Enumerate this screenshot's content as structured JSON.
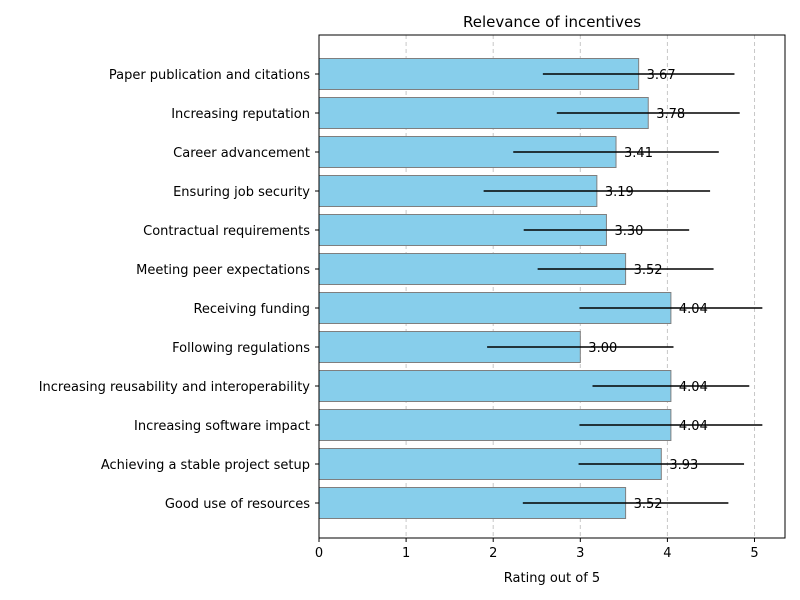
{
  "chart_data": {
    "type": "bar",
    "orientation": "horizontal",
    "title": "Relevance of incentives",
    "xlabel": "Rating out of 5",
    "ylabel": "",
    "xlim": [
      0,
      5.35
    ],
    "xticks": [
      0,
      1,
      2,
      3,
      4,
      5
    ],
    "grid": {
      "x": true,
      "y": false,
      "style": "dashed"
    },
    "colors": {
      "bar": "#87CEEB",
      "bar_edge": "#7f7f7f",
      "error_bar": "#000000",
      "grid": "#c8c8c8"
    },
    "categories": [
      "Paper publication and citations",
      "Increasing reputation",
      "Career advancement",
      "Ensuring job security",
      "Contractual requirements",
      "Meeting peer expectations",
      "Receiving funding",
      "Following regulations",
      "Increasing reusability and interoperability",
      "Increasing software impact",
      "Achieving a stable project setup",
      "Good use of resources"
    ],
    "values": [
      3.67,
      3.78,
      3.41,
      3.19,
      3.3,
      3.52,
      4.04,
      3.0,
      4.04,
      4.04,
      3.93,
      3.52
    ],
    "value_labels": [
      "3.67",
      "3.78",
      "3.41",
      "3.19",
      "3.30",
      "3.52",
      "4.04",
      "3.00",
      "4.04",
      "4.04",
      "3.93",
      "3.52"
    ],
    "error": [
      1.1,
      1.05,
      1.18,
      1.3,
      0.95,
      1.01,
      1.05,
      1.07,
      0.9,
      1.05,
      0.95,
      1.18
    ]
  }
}
